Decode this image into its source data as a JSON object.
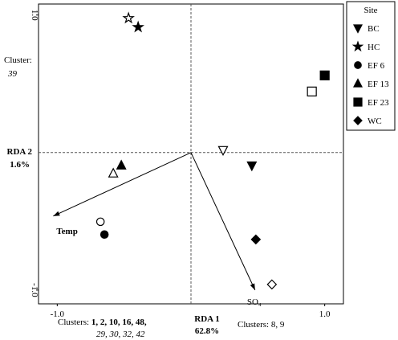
{
  "chart_data": {
    "type": "scatter",
    "xlabel": [
      "RDA 1",
      "62.8%"
    ],
    "ylabel": [
      "RDA 2",
      "1.6%"
    ],
    "xlim": [
      -1.14,
      1.14
    ],
    "ylim": [
      -1.1,
      1.08
    ],
    "xticks": [
      {
        "value": -1,
        "label": "-1.0"
      },
      {
        "value": 1,
        "label": "1.0"
      }
    ],
    "yticks": [
      {
        "value": -1,
        "label": "-1.0"
      },
      {
        "value": 1,
        "label": "1.0"
      }
    ],
    "legend_title": "Site",
    "legend_position": "outside right",
    "series": [
      {
        "name": "BC",
        "marker": "triangle-down",
        "color": "#000000",
        "filled": [
          false,
          true
        ],
        "x": [
          0.24,
          0.455
        ],
        "values": [
          0.018,
          -0.094
        ]
      },
      {
        "name": "HC",
        "marker": "star",
        "color": "#000000",
        "filled": [
          false,
          true
        ],
        "x": [
          -0.467,
          -0.395
        ],
        "values": [
          0.977,
          0.912
        ]
      },
      {
        "name": "EF 6",
        "marker": "circle",
        "color": "#000000",
        "filled": [
          false,
          true
        ],
        "x": [
          -0.677,
          -0.647
        ],
        "values": [
          -0.503,
          -0.596
        ]
      },
      {
        "name": "EF 13",
        "marker": "triangle",
        "color": "#000000",
        "filled": [
          false,
          true
        ],
        "x": [
          -0.581,
          -0.521
        ],
        "values": [
          -0.152,
          -0.094
        ]
      },
      {
        "name": "EF 23",
        "marker": "square",
        "color": "#000000",
        "filled": [
          false,
          true
        ],
        "x": [
          0.904,
          1.0
        ],
        "values": [
          0.444,
          0.561
        ]
      },
      {
        "name": "WC",
        "marker": "diamond",
        "color": "#000000",
        "filled": [
          false,
          true
        ],
        "x": [
          0.605,
          0.485
        ],
        "values": [
          -0.959,
          -0.632
        ]
      }
    ],
    "vectors": [
      {
        "name": "Temp",
        "x": -1.03,
        "y": -0.462
      },
      {
        "name": "SO₄",
        "x": 0.479,
        "y": -1.0
      }
    ],
    "annotations": {
      "top_left": [
        "Cluster:",
        "39"
      ],
      "bottom_left": [
        "Clusters:",
        "1, 2, 10, 16, 48,",
        "29, 30, 32, 42"
      ],
      "bottom_right": "Clusters: 8, 9"
    }
  }
}
